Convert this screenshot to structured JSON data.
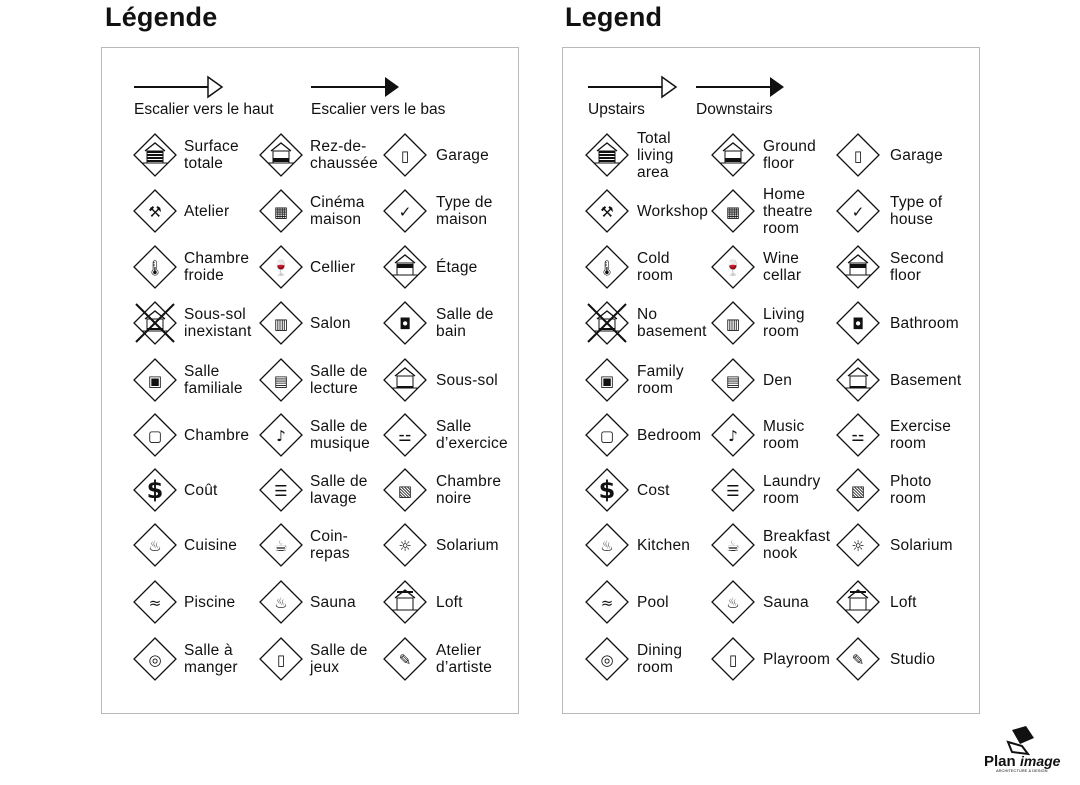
{
  "fr": {
    "title": "Légende",
    "stairs": {
      "up": "Escalier vers le haut",
      "down": "Escalier vers le bas"
    },
    "items": [
      {
        "label": "Surface\ntotale",
        "icon": "total-area-icon"
      },
      {
        "label": "Rez-de-\nchaussée",
        "icon": "ground-floor-icon"
      },
      {
        "label": "Garage",
        "icon": "garage-icon"
      },
      {
        "label": "Atelier",
        "icon": "hammer-icon"
      },
      {
        "label": "Cinéma\nmaison",
        "icon": "projector-icon"
      },
      {
        "label": "Type de\nmaison",
        "icon": "house-check-icon"
      },
      {
        "label": "Chambre\nfroide",
        "icon": "thermometer-icon"
      },
      {
        "label": "Cellier",
        "icon": "wine-icon"
      },
      {
        "label": "Étage",
        "icon": "second-floor-icon"
      },
      {
        "label": "Sous-sol\ninexistant",
        "icon": "no-basement-icon"
      },
      {
        "label": "Salon",
        "icon": "sofa-icon"
      },
      {
        "label": "Salle de\nbain",
        "icon": "toilet-icon"
      },
      {
        "label": "Salle\nfamiliale",
        "icon": "tv-icon"
      },
      {
        "label": "Salle de\nlecture",
        "icon": "book-icon"
      },
      {
        "label": "Sous-sol",
        "icon": "basement-icon"
      },
      {
        "label": "Chambre",
        "icon": "bed-icon"
      },
      {
        "label": "Salle de\nmusique",
        "icon": "music-note-icon"
      },
      {
        "label": "Salle\nd’exercice",
        "icon": "dumbbell-icon"
      },
      {
        "label": "Coût",
        "icon": "dollar-icon"
      },
      {
        "label": "Salle de\nlavage",
        "icon": "washer-icon"
      },
      {
        "label": "Chambre\nnoire",
        "icon": "camera-icon"
      },
      {
        "label": "Cuisine",
        "icon": "pot-icon"
      },
      {
        "label": "Coin-\nrepas",
        "icon": "coffee-cup-icon"
      },
      {
        "label": "Solarium",
        "icon": "sun-icon"
      },
      {
        "label": "Piscine",
        "icon": "swimmer-icon"
      },
      {
        "label": "Sauna",
        "icon": "sauna-icon"
      },
      {
        "label": "Loft",
        "icon": "loft-icon"
      },
      {
        "label": "Salle à\nmanger",
        "icon": "plate-icon"
      },
      {
        "label": "Salle de\njeux",
        "icon": "playroom-icon"
      },
      {
        "label": "Atelier\nd’artiste",
        "icon": "palette-icon"
      }
    ]
  },
  "en": {
    "title": "Legend",
    "stairs": {
      "up": "Upstairs",
      "down": "Downstairs"
    },
    "items": [
      {
        "label": "Total\nliving\narea",
        "icon": "total-area-icon"
      },
      {
        "label": "Ground\nfloor",
        "icon": "ground-floor-icon"
      },
      {
        "label": "Garage",
        "icon": "garage-icon"
      },
      {
        "label": "Workshop",
        "icon": "hammer-icon"
      },
      {
        "label": "Home\ntheatre\nroom",
        "icon": "projector-icon"
      },
      {
        "label": "Type of\nhouse",
        "icon": "house-check-icon"
      },
      {
        "label": "Cold\nroom",
        "icon": "thermometer-icon"
      },
      {
        "label": "Wine\ncellar",
        "icon": "wine-icon"
      },
      {
        "label": "Second\nfloor",
        "icon": "second-floor-icon"
      },
      {
        "label": "No\nbasement",
        "icon": "no-basement-icon"
      },
      {
        "label": "Living\nroom",
        "icon": "sofa-icon"
      },
      {
        "label": "Bathroom",
        "icon": "toilet-icon"
      },
      {
        "label": "Family\nroom",
        "icon": "tv-icon"
      },
      {
        "label": "Den",
        "icon": "book-icon"
      },
      {
        "label": "Basement",
        "icon": "basement-icon"
      },
      {
        "label": "Bedroom",
        "icon": "bed-icon"
      },
      {
        "label": "Music\nroom",
        "icon": "music-note-icon"
      },
      {
        "label": "Exercise\nroom",
        "icon": "dumbbell-icon"
      },
      {
        "label": "Cost",
        "icon": "dollar-icon"
      },
      {
        "label": "Laundry\nroom",
        "icon": "washer-icon"
      },
      {
        "label": "Photo\nroom",
        "icon": "camera-icon"
      },
      {
        "label": "Kitchen",
        "icon": "pot-icon"
      },
      {
        "label": "Breakfast\nnook",
        "icon": "coffee-cup-icon"
      },
      {
        "label": "Solarium",
        "icon": "sun-icon"
      },
      {
        "label": "Pool",
        "icon": "swimmer-icon"
      },
      {
        "label": "Sauna",
        "icon": "sauna-icon"
      },
      {
        "label": "Loft",
        "icon": "loft-icon"
      },
      {
        "label": "Dining\nroom",
        "icon": "plate-icon"
      },
      {
        "label": "Playroom",
        "icon": "playroom-icon"
      },
      {
        "label": "Studio",
        "icon": "palette-icon"
      }
    ]
  },
  "logo": {
    "text": "Planimage",
    "tagline": "ARCHITECTURE & DESIGN"
  }
}
